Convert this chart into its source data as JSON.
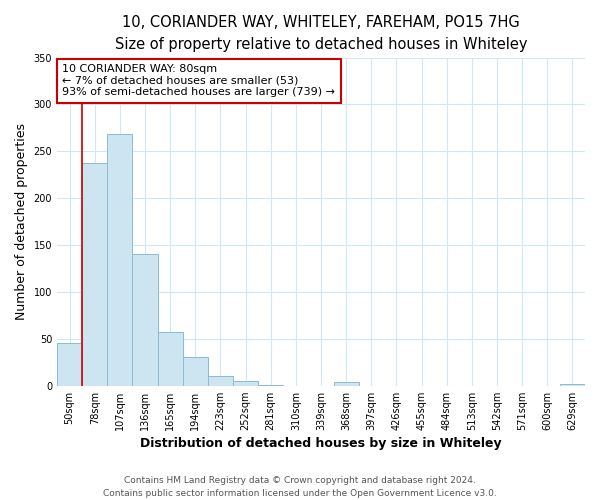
{
  "title": "10, CORIANDER WAY, WHITELEY, FAREHAM, PO15 7HG",
  "subtitle": "Size of property relative to detached houses in Whiteley",
  "xlabel": "Distribution of detached houses by size in Whiteley",
  "ylabel": "Number of detached properties",
  "bar_labels": [
    "50sqm",
    "78sqm",
    "107sqm",
    "136sqm",
    "165sqm",
    "194sqm",
    "223sqm",
    "252sqm",
    "281sqm",
    "310sqm",
    "339sqm",
    "368sqm",
    "397sqm",
    "426sqm",
    "455sqm",
    "484sqm",
    "513sqm",
    "542sqm",
    "571sqm",
    "600sqm",
    "629sqm"
  ],
  "bar_values": [
    46,
    237,
    268,
    140,
    57,
    31,
    10,
    5,
    1,
    0,
    0,
    4,
    0,
    0,
    0,
    0,
    0,
    0,
    0,
    0,
    2
  ],
  "bar_color": "#cce5f0",
  "bar_edge_color": "#8bbcd4",
  "ylim": [
    0,
    350
  ],
  "yticks": [
    0,
    50,
    100,
    150,
    200,
    250,
    300,
    350
  ],
  "vline_x_index": 1,
  "vline_color": "#cc0000",
  "annotation_box_text": "10 CORIANDER WAY: 80sqm\n← 7% of detached houses are smaller (53)\n93% of semi-detached houses are larger (739) →",
  "annotation_box_color": "white",
  "annotation_box_edge_color": "#cc0000",
  "footer_line1": "Contains HM Land Registry data © Crown copyright and database right 2024.",
  "footer_line2": "Contains public sector information licensed under the Open Government Licence v3.0.",
  "title_fontsize": 10.5,
  "subtitle_fontsize": 9.5,
  "axis_label_fontsize": 9,
  "tick_fontsize": 7,
  "annotation_fontsize": 8,
  "footer_fontsize": 6.5,
  "grid_color": "#d0e8f5"
}
